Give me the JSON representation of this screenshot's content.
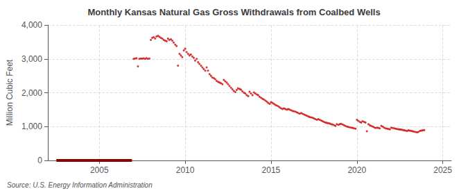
{
  "chart_data": {
    "type": "scatter",
    "title": "Monthly Kansas Natural Gas Gross Withdrawals from Coalbed Wells",
    "ylabel": "Million Cubic Feet",
    "annotations": [
      "Source: U.S. Energy Information Administration"
    ],
    "xlim": [
      2002.0,
      2025.5
    ],
    "xticks": [
      2005,
      2010,
      2015,
      2020,
      2025
    ],
    "ylim": [
      0,
      4000
    ],
    "yticks": [
      0,
      {
        "value": 1000,
        "label": "1,000"
      },
      {
        "value": 2000,
        "label": "2,000"
      },
      {
        "value": 3000,
        "label": "3,000"
      },
      {
        "value": 4000,
        "label": "4,000"
      }
    ],
    "grid": true,
    "series": [
      {
        "type": "line",
        "color": "#8b0000",
        "x": [
          2002.5,
          2006.9
        ],
        "values": [
          0,
          0
        ]
      },
      {
        "type": "scatter",
        "color": "#cc0000",
        "x": [
          2007.0,
          2007.08,
          2007.17,
          2007.25,
          2007.33,
          2007.42,
          2007.5,
          2007.58,
          2007.67,
          2007.75,
          2007.83,
          2007.92,
          2008.0,
          2008.08,
          2008.17,
          2008.25,
          2008.33,
          2008.42,
          2008.5,
          2008.58,
          2008.67,
          2008.75,
          2008.83,
          2008.92,
          2009.0,
          2009.08,
          2009.17,
          2009.25,
          2009.33,
          2009.42,
          2009.5,
          2009.58,
          2009.67,
          2009.75,
          2009.83,
          2009.92,
          2010.0,
          2010.08,
          2010.17,
          2010.25,
          2010.33,
          2010.42,
          2010.5,
          2010.58,
          2010.67,
          2010.75,
          2010.83,
          2010.92,
          2011.0,
          2011.08,
          2011.17,
          2011.25,
          2011.33,
          2011.42,
          2011.5,
          2011.58,
          2011.67,
          2011.75,
          2011.83,
          2011.92,
          2012.0,
          2012.08,
          2012.17,
          2012.25,
          2012.33,
          2012.42,
          2012.5,
          2012.58,
          2012.67,
          2012.75,
          2012.83,
          2012.92,
          2013.0,
          2013.08,
          2013.17,
          2013.25,
          2013.33,
          2013.42,
          2013.5,
          2013.58,
          2013.67,
          2013.75,
          2013.83,
          2013.92,
          2014.0,
          2014.08,
          2014.17,
          2014.25,
          2014.33,
          2014.42,
          2014.5,
          2014.58,
          2014.67,
          2014.75,
          2014.83,
          2014.92,
          2015.0,
          2015.08,
          2015.17,
          2015.25,
          2015.33,
          2015.42,
          2015.5,
          2015.58,
          2015.67,
          2015.75,
          2015.83,
          2015.92,
          2016.0,
          2016.08,
          2016.17,
          2016.25,
          2016.33,
          2016.42,
          2016.5,
          2016.58,
          2016.67,
          2016.75,
          2016.83,
          2016.92,
          2017.0,
          2017.08,
          2017.17,
          2017.25,
          2017.33,
          2017.42,
          2017.5,
          2017.58,
          2017.67,
          2017.75,
          2017.83,
          2017.92,
          2018.0,
          2018.08,
          2018.17,
          2018.25,
          2018.33,
          2018.42,
          2018.5,
          2018.58,
          2018.67,
          2018.75,
          2018.83,
          2018.92,
          2019.0,
          2019.08,
          2019.17,
          2019.25,
          2019.33,
          2019.42,
          2019.5,
          2019.58,
          2019.67,
          2019.75,
          2019.83,
          2019.92,
          2020.0,
          2020.08,
          2020.17,
          2020.25,
          2020.33,
          2020.42,
          2020.5,
          2020.58,
          2020.67,
          2020.75,
          2020.83,
          2020.92,
          2021.0,
          2021.08,
          2021.17,
          2021.25,
          2021.33,
          2021.42,
          2021.5,
          2021.58,
          2021.67,
          2021.75,
          2021.83,
          2021.92,
          2022.0,
          2022.08,
          2022.17,
          2022.25,
          2022.33,
          2022.42,
          2022.5,
          2022.58,
          2022.67,
          2022.75,
          2022.83,
          2022.92,
          2023.0,
          2023.08,
          2023.17,
          2023.25,
          2023.33,
          2023.42,
          2023.5,
          2023.58,
          2023.67,
          2023.75,
          2023.83,
          2023.92
        ],
        "values": [
          3000,
          3010,
          3020,
          2780,
          3000,
          3010,
          3005,
          3015,
          3000,
          3020,
          3000,
          3010,
          3560,
          3620,
          3640,
          3600,
          3660,
          3680,
          3650,
          3620,
          3600,
          3560,
          3540,
          3520,
          3600,
          3560,
          3580,
          3540,
          3480,
          3420,
          3380,
          2800,
          3150,
          3100,
          3050,
          3250,
          3300,
          3200,
          3150,
          3100,
          3130,
          3070,
          3030,
          2950,
          3000,
          2900,
          2850,
          2800,
          2750,
          2700,
          2650,
          2750,
          2650,
          2550,
          2500,
          2450,
          2430,
          2400,
          2350,
          2320,
          2300,
          2280,
          2250,
          2380,
          2340,
          2300,
          2250,
          2200,
          2150,
          2100,
          2050,
          2020,
          2080,
          2130,
          2110,
          2090,
          2040,
          2000,
          1980,
          1930,
          1900,
          2030,
          1980,
          1930,
          2010,
          1980,
          1950,
          1930,
          1880,
          1850,
          1820,
          1800,
          1770,
          1740,
          1700,
          1670,
          1720,
          1700,
          1670,
          1640,
          1620,
          1600,
          1570,
          1540,
          1520,
          1540,
          1520,
          1500,
          1520,
          1500,
          1480,
          1460,
          1450,
          1440,
          1420,
          1400,
          1380,
          1400,
          1380,
          1360,
          1340,
          1320,
          1300,
          1280,
          1270,
          1260,
          1240,
          1220,
          1200,
          1220,
          1200,
          1180,
          1160,
          1140,
          1120,
          1110,
          1100,
          1090,
          1070,
          1060,
          1040,
          1020,
          1070,
          1050,
          1070,
          1080,
          1060,
          1040,
          1020,
          1000,
          990,
          980,
          970,
          960,
          950,
          940,
          1200,
          1170,
          1140,
          1120,
          1160,
          1140,
          1120,
          860,
          1070,
          1040,
          1020,
          1000,
          980,
          960,
          970,
          960,
          950,
          1020,
          1000,
          970,
          950,
          940,
          930,
          920,
          970,
          960,
          950,
          940,
          930,
          920,
          915,
          910,
          900,
          890,
          880,
          870,
          890,
          880,
          870,
          860,
          850,
          840,
          830,
          840,
          870,
          880,
          890,
          895
        ]
      }
    ]
  }
}
